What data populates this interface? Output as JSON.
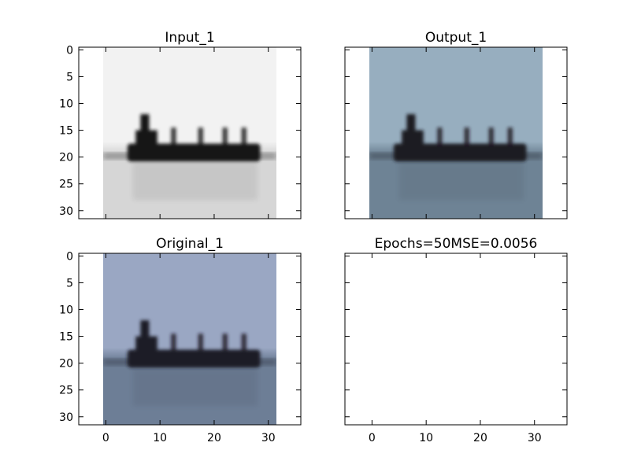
{
  "chart_data": [
    {
      "type": "heatmap",
      "title": "Input_1",
      "image_kind": "grayscale",
      "image_size": [
        32,
        32
      ],
      "xlim": [
        -5,
        36
      ],
      "ylim": [
        31.5,
        -0.5
      ],
      "xticks": [
        0,
        10,
        20,
        30
      ],
      "yticks": [
        0,
        5,
        10,
        15,
        20,
        25,
        30
      ],
      "show_xtick_labels": false,
      "show_ytick_labels": true,
      "colors": {
        "sky": "#f2f2f2",
        "water": "#d6d6d6",
        "ship": "#151515"
      }
    },
    {
      "type": "heatmap",
      "title": "Output_1",
      "image_kind": "color",
      "image_size": [
        32,
        32
      ],
      "xlim": [
        -5,
        36
      ],
      "ylim": [
        31.5,
        -0.5
      ],
      "xticks": [
        0,
        10,
        20,
        30
      ],
      "yticks": [
        0,
        5,
        10,
        15,
        20,
        25,
        30
      ],
      "show_xtick_labels": false,
      "show_ytick_labels": false,
      "colors": {
        "sky": "#97aebf",
        "water": "#6e8395",
        "ship": "#1c1a22"
      }
    },
    {
      "type": "heatmap",
      "title": "Original_1",
      "image_kind": "color",
      "image_size": [
        32,
        32
      ],
      "xlim": [
        -5,
        36
      ],
      "ylim": [
        31.5,
        -0.5
      ],
      "xticks": [
        0,
        10,
        20,
        30
      ],
      "yticks": [
        0,
        5,
        10,
        15,
        20,
        25,
        30
      ],
      "show_xtick_labels": true,
      "show_ytick_labels": true,
      "colors": {
        "sky": "#9aa7c3",
        "water": "#6d7e96",
        "ship": "#1d1b26"
      }
    },
    {
      "type": "heatmap",
      "title": "Epochs=50MSE=0.0056",
      "image_kind": "none",
      "xlim": [
        -5,
        36
      ],
      "ylim": [
        31.5,
        -0.5
      ],
      "xticks": [
        0,
        10,
        20,
        30
      ],
      "yticks": [
        0,
        5,
        10,
        15,
        20,
        25,
        30
      ],
      "show_xtick_labels": true,
      "show_ytick_labels": false
    }
  ]
}
